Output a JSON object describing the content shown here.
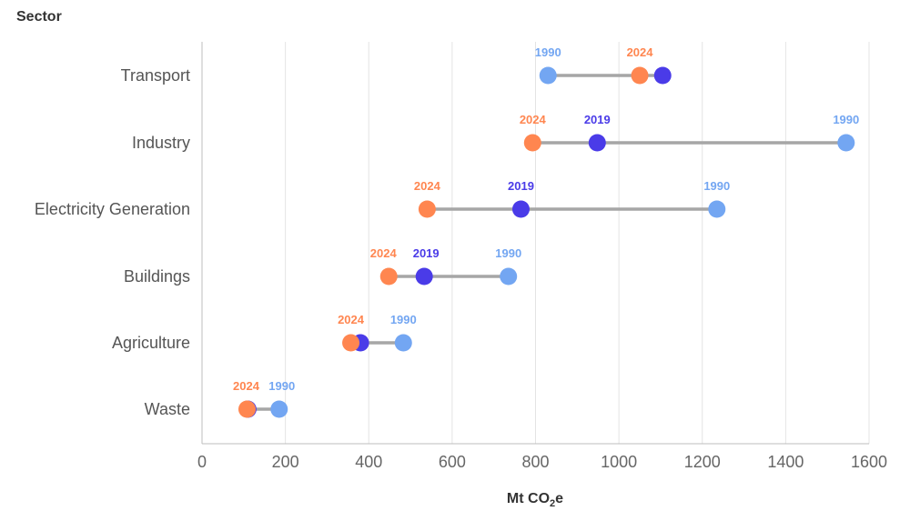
{
  "chart_data": {
    "type": "dumbbell",
    "ylabel": "Sector",
    "xlabel_main": "Mt CO",
    "xlabel_sub": "2",
    "xlabel_suffix": "e",
    "xlim": [
      0,
      1600
    ],
    "xticks": [
      0,
      200,
      400,
      600,
      800,
      1000,
      1200,
      1400,
      1600
    ],
    "categories": [
      "Transport",
      "Industry",
      "Electricity Generation",
      "Buildings",
      "Agriculture",
      "Waste"
    ],
    "years": [
      "1990",
      "2019",
      "2024"
    ],
    "colors": {
      "1990": "#73A6F2",
      "2019": "#4A3BE8",
      "2024": "#FF8650",
      "connector": "#A6A6A6"
    },
    "values": {
      "1990": [
        830,
        1545,
        1235,
        735,
        483,
        185
      ],
      "2019": [
        1105,
        948,
        765,
        533,
        380,
        110
      ],
      "2024": [
        1050,
        793,
        540,
        448,
        357,
        108
      ]
    },
    "point_labels": [
      [
        "1990",
        "2024"
      ],
      [
        "2024",
        "2019",
        "1990"
      ],
      [
        "2024",
        "2019",
        "1990"
      ],
      [
        "2024",
        "2019",
        "1990"
      ],
      [
        "2024",
        "1990"
      ],
      [
        "2024",
        "1990"
      ]
    ]
  }
}
